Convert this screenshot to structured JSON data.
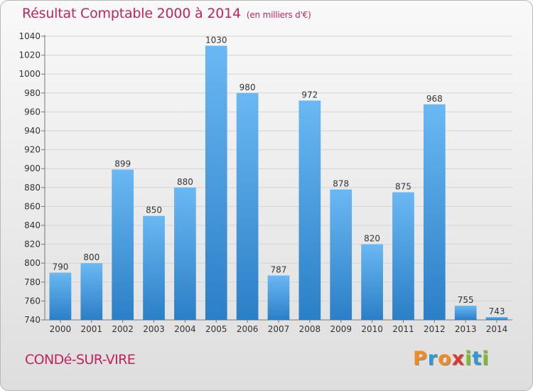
{
  "header": {
    "title": "Résultat Comptable 2000 à 2014",
    "unit": "(en milliers d'€)"
  },
  "footer": {
    "commune": "CONDé-SUR-VIRE",
    "logo_letters": [
      "P",
      "r",
      "o",
      "x",
      "i",
      "t",
      "i"
    ],
    "logo_colors": [
      "#f28c1e",
      "#2e9ad6",
      "#f28c1e",
      "#d83a2c",
      "#7bbd2a",
      "#2e9ad6",
      "#7bbd2a"
    ]
  },
  "colors": {
    "bar_light": "#6ab8f3",
    "bar_dark": "#2b7fc6",
    "title": "#c0245d"
  },
  "chart_data": {
    "type": "bar",
    "title": "Résultat Comptable 2000 à 2014",
    "xlabel": "",
    "ylabel": "",
    "categories": [
      "2000",
      "2001",
      "2002",
      "2003",
      "2004",
      "2005",
      "2006",
      "2007",
      "2008",
      "2009",
      "2010",
      "2011",
      "2012",
      "2013",
      "2014"
    ],
    "values": [
      790,
      800,
      899,
      850,
      880,
      1030,
      980,
      787,
      972,
      878,
      820,
      875,
      968,
      755,
      743
    ],
    "ylim": [
      740,
      1040
    ],
    "yticks": [
      740,
      760,
      780,
      800,
      820,
      840,
      860,
      880,
      900,
      920,
      940,
      960,
      980,
      1000,
      1020,
      1040
    ],
    "grid": true,
    "legend": "none"
  }
}
